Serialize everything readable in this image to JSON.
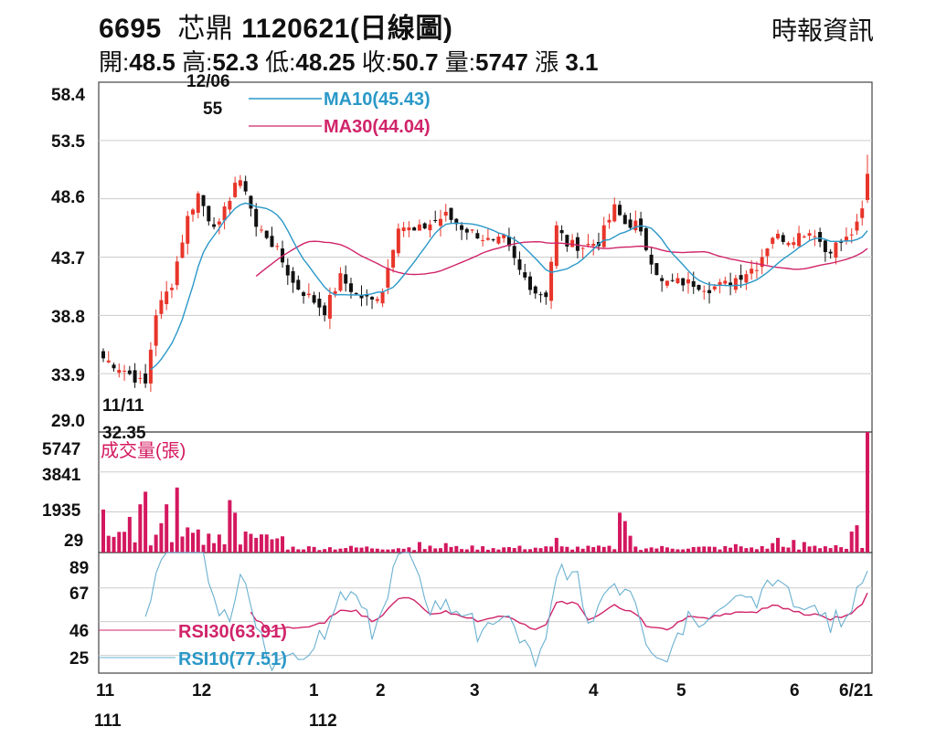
{
  "header": {
    "code": "6695",
    "name": "芯鼎",
    "date": "1120621(日線圖)",
    "source": "時報資訊"
  },
  "ohlc": {
    "open_label": "開:",
    "open": "48.5",
    "high_label": "高:",
    "high": "52.3",
    "low_label": "低:",
    "low": "48.25",
    "close_label": "收:",
    "close": "50.7",
    "vol_label": "量:",
    "vol": "5747",
    "chg_label": "漲",
    "chg": "3.1"
  },
  "colors": {
    "up": "#e8352a",
    "down": "#111111",
    "ma10": "#2a98c8",
    "ma30": "#d0246a",
    "vol": "#d4185f",
    "grid": "#cccccc"
  },
  "chart_data": [
    {
      "type": "candlestick",
      "title": "",
      "y_ticks": [
        "58.4",
        "53.5",
        "48.6",
        "43.7",
        "38.8",
        "33.9",
        "29.0"
      ],
      "ylim": [
        29.0,
        58.4
      ],
      "series": [
        {
          "name": "MA10(45.43)",
          "value": 45.43
        },
        {
          "name": "MA30(44.04)",
          "value": 44.04
        }
      ],
      "annotations": [
        {
          "label_top": "12/06",
          "label_bottom": "55",
          "value": 55
        },
        {
          "label_top": "11/11",
          "label_bottom": "32.35",
          "value": 32.35
        }
      ],
      "last": {
        "open": 48.5,
        "high": 52.3,
        "low": 48.25,
        "close": 50.7
      }
    },
    {
      "type": "bar",
      "title": "成交量(張)",
      "y_ticks": [
        "5747",
        "3841",
        "1935",
        "29"
      ],
      "ylim": [
        29,
        5747
      ],
      "last": 5747
    },
    {
      "type": "line",
      "title": "",
      "y_ticks": [
        "89",
        "67",
        "46",
        "25"
      ],
      "ylim": [
        14,
        89
      ],
      "series": [
        {
          "name": "RSI30(63.91)",
          "value": 63.91
        },
        {
          "name": "RSI10(77.51)",
          "value": 77.51
        }
      ]
    }
  ],
  "x_axis": {
    "months": [
      "11",
      "12",
      "1",
      "2",
      "3",
      "4",
      "5",
      "6",
      "6/21"
    ],
    "years": [
      "111",
      "112"
    ]
  }
}
